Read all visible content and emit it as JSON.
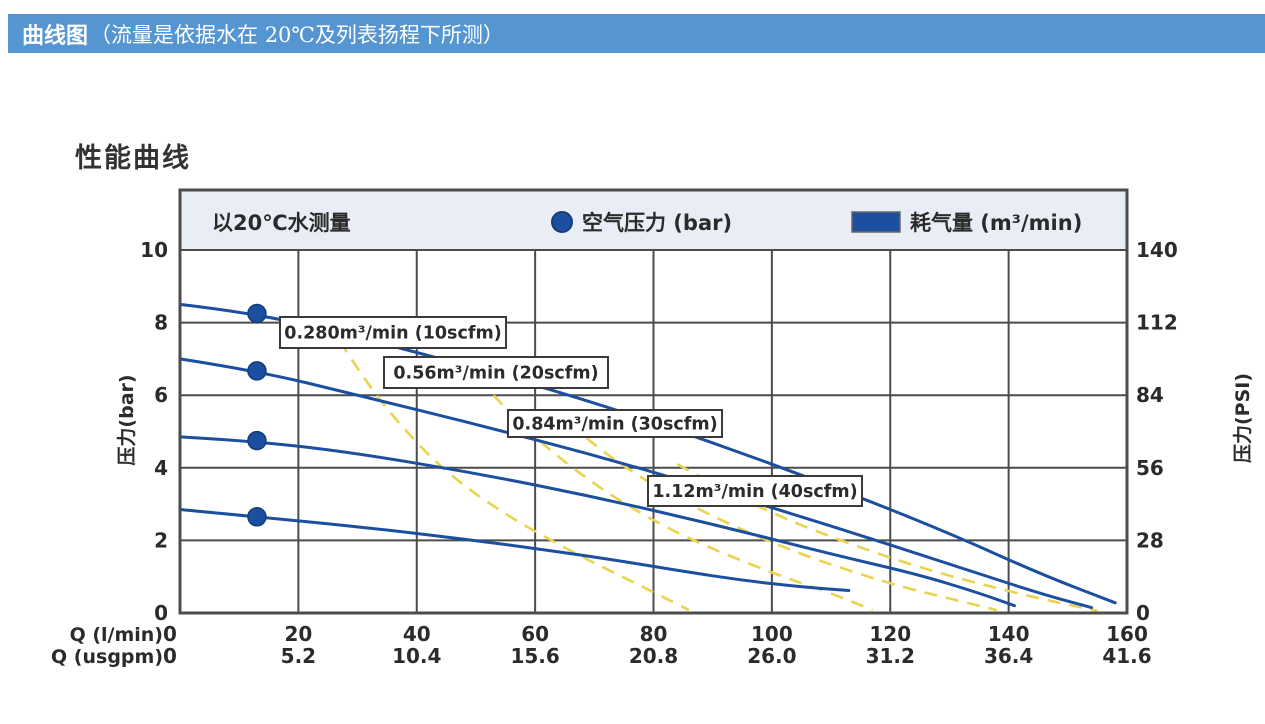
{
  "page_header": {
    "title_bold": "曲线图",
    "title_rest": "（流量是依据水在 20℃及列表扬程下所测）"
  },
  "section_title": "性能曲线",
  "chart_data": {
    "type": "line",
    "title": "性能曲线",
    "legend": {
      "note": "以20℃水测量",
      "dot_label": "空气压力 (bar)",
      "swatch_label": "耗气量 (m³/min)",
      "position": "top-band"
    },
    "x_axis": {
      "prefix_lmin": "Q (l/min)",
      "prefix_usgpm": "Q (usgpm)",
      "ticks_lmin": [
        "0",
        "20",
        "40",
        "60",
        "80",
        "100",
        "120",
        "140",
        "160"
      ],
      "ticks_usgpm": [
        "0",
        "5.2",
        "10.4",
        "15.6",
        "20.8",
        "26.0",
        "31.2",
        "36.4",
        "41.6"
      ],
      "range_lmin": [
        0,
        160
      ],
      "grid": true
    },
    "y_axis_left": {
      "label": "压力(bar)",
      "ticks": [
        "10",
        "8",
        "6",
        "4",
        "2",
        "0"
      ],
      "range": [
        0,
        10
      ],
      "grid": true
    },
    "y_axis_right": {
      "label": "压力(PSI)",
      "ticks": [
        "140",
        "112",
        "84",
        "56",
        "28",
        "0"
      ],
      "range": [
        0,
        140
      ]
    },
    "pressure_curves": [
      {
        "air_pressure_bar": 8.4,
        "points": [
          [
            0,
            8.5
          ],
          [
            13,
            8.25
          ],
          [
            30,
            7.6
          ],
          [
            50,
            6.75
          ],
          [
            70,
            5.8
          ],
          [
            90,
            4.7
          ],
          [
            110,
            3.5
          ],
          [
            130,
            2.2
          ],
          [
            145,
            1.1
          ],
          [
            158,
            0.28
          ]
        ]
      },
      {
        "air_pressure_bar": 7.0,
        "points": [
          [
            0,
            7.0
          ],
          [
            13,
            6.67
          ],
          [
            30,
            6.0
          ],
          [
            50,
            5.2
          ],
          [
            70,
            4.35
          ],
          [
            90,
            3.4
          ],
          [
            110,
            2.4
          ],
          [
            130,
            1.35
          ],
          [
            145,
            0.55
          ],
          [
            154,
            0.15
          ]
        ]
      },
      {
        "air_pressure_bar": 4.9,
        "points": [
          [
            0,
            4.85
          ],
          [
            13,
            4.73
          ],
          [
            30,
            4.4
          ],
          [
            50,
            3.85
          ],
          [
            70,
            3.2
          ],
          [
            90,
            2.45
          ],
          [
            110,
            1.62
          ],
          [
            125,
            1.05
          ],
          [
            135,
            0.55
          ],
          [
            141,
            0.2
          ]
        ]
      },
      {
        "air_pressure_bar": 2.8,
        "points": [
          [
            0,
            2.85
          ],
          [
            13,
            2.65
          ],
          [
            30,
            2.38
          ],
          [
            50,
            2.0
          ],
          [
            70,
            1.55
          ],
          [
            85,
            1.15
          ],
          [
            95,
            0.9
          ],
          [
            105,
            0.72
          ],
          [
            113,
            0.62
          ]
        ]
      }
    ],
    "air_pressure_markers_lmin_bar": [
      [
        13,
        8.25
      ],
      [
        13,
        6.67
      ],
      [
        13,
        4.75
      ],
      [
        13,
        2.65
      ]
    ],
    "air_consumption_curves": [
      {
        "label": "0.280m³/min (10scfm)",
        "points": [
          [
            25,
            8.0
          ],
          [
            30,
            6.7
          ],
          [
            36,
            5.4
          ],
          [
            44,
            4.0
          ],
          [
            54,
            2.8
          ],
          [
            66,
            1.7
          ],
          [
            76,
            0.9
          ],
          [
            86,
            0.08
          ]
        ]
      },
      {
        "label": "0.56m³/min (20scfm)",
        "points": [
          [
            48,
            6.9
          ],
          [
            55,
            5.6
          ],
          [
            63,
            4.4
          ],
          [
            73,
            3.2
          ],
          [
            85,
            2.1
          ],
          [
            100,
            1.1
          ],
          [
            110,
            0.55
          ],
          [
            117,
            0.08
          ]
        ]
      },
      {
        "label": "0.84m³/min (30scfm)",
        "points": [
          [
            63,
            5.6
          ],
          [
            70,
            4.6
          ],
          [
            80,
            3.5
          ],
          [
            92,
            2.5
          ],
          [
            105,
            1.6
          ],
          [
            120,
            0.8
          ],
          [
            130,
            0.4
          ],
          [
            138,
            0.08
          ]
        ]
      },
      {
        "label": "1.12m³/min (40scfm)",
        "points": [
          [
            84,
            4.1
          ],
          [
            92,
            3.4
          ],
          [
            102,
            2.6
          ],
          [
            114,
            1.85
          ],
          [
            127,
            1.15
          ],
          [
            140,
            0.6
          ],
          [
            148,
            0.3
          ],
          [
            155,
            0.06
          ]
        ]
      }
    ],
    "colors": {
      "header_bg": "#5596d2",
      "legend_band": "#e9edf6",
      "grid": "#4c4c4c",
      "curve_blue": "#1c4f9f",
      "marker_blue": "#1c4f9f",
      "dash_yellow": "#e9d34f",
      "label_box_border": "#3a3a3a",
      "label_box_fill": "#ffffff"
    }
  }
}
